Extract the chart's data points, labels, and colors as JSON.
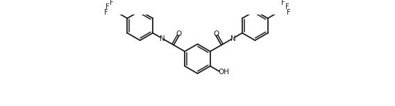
{
  "background": "#ffffff",
  "line_color": "#1a1a1a",
  "line_width": 1.3,
  "font_size": 7.5,
  "figsize": [
    5.69,
    1.53
  ],
  "dpi": 100,
  "xlim": [
    -0.5,
    10.5
  ],
  "ylim": [
    -1.2,
    2.2
  ]
}
